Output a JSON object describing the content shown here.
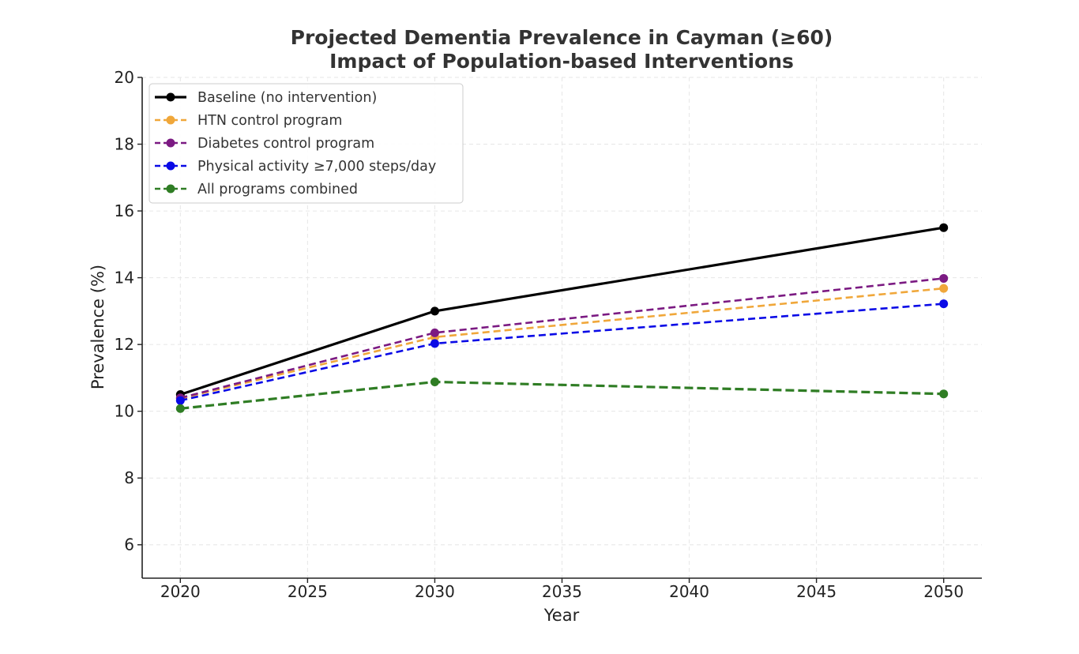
{
  "chart_data": {
    "type": "line",
    "title": "Projected Dementia Prevalence in Cayman (≥60)",
    "subtitle": "Impact of Population-based Interventions",
    "xlabel": "Year",
    "ylabel": "Prevalence (%)",
    "x": [
      2020,
      2030,
      2050
    ],
    "xlim": [
      2018.5,
      2051.5
    ],
    "ylim": [
      5,
      20
    ],
    "xticks": [
      2020,
      2025,
      2030,
      2035,
      2040,
      2045,
      2050
    ],
    "yticks": [
      6,
      8,
      10,
      12,
      14,
      16,
      18,
      20
    ],
    "grid": true,
    "legend_position": "top-left",
    "series": [
      {
        "name": "Baseline (no intervention)",
        "values": [
          10.5,
          13.0,
          15.5
        ],
        "color": "#000000",
        "style": "solid"
      },
      {
        "name": "HTN control program",
        "values": [
          10.38,
          12.22,
          13.68
        ],
        "color": "#f0a73a",
        "style": "dashed"
      },
      {
        "name": "Diabetes control program",
        "values": [
          10.4,
          12.35,
          13.98
        ],
        "color": "#7b1a82",
        "style": "dashed"
      },
      {
        "name": "Physical activity ≥7,000 steps/day",
        "values": [
          10.32,
          12.03,
          13.22
        ],
        "color": "#0a0ae6",
        "style": "dashed"
      },
      {
        "name": "All programs combined",
        "values": [
          10.08,
          10.88,
          10.52
        ],
        "color": "#2f7d24",
        "style": "dashed"
      }
    ]
  }
}
